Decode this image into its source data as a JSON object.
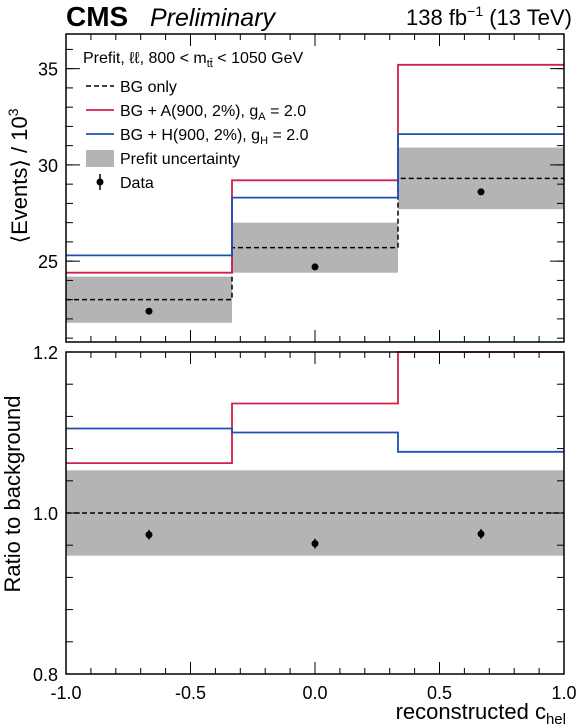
{
  "header": {
    "experiment": "CMS",
    "status": "Preliminary",
    "lumi": "138 fb",
    "lumi_exp": "−1",
    "energy": "(13 TeV)"
  },
  "annotation": {
    "prefix": "Prefit, ℓℓ, 800 < m",
    "sub": "tt̄",
    "suffix": " < 1050 GeV"
  },
  "legend": {
    "bg_only": "BG only",
    "bg_A_pre": "BG + A(900, 2%), g",
    "bg_A_sub": "A",
    "bg_A_post": " = 2.0",
    "bg_H_pre": "BG + H(900, 2%), g",
    "bg_H_sub": "H",
    "bg_H_post": " = 2.0",
    "uncertainty": "Prefit uncertainty",
    "data": "Data"
  },
  "colors": {
    "bg": "#000000",
    "signal_A": "#d1204a",
    "signal_H": "#1f4fb4",
    "uncertainty": "#b4b4b4",
    "data": "#000000"
  },
  "chart_data": [
    {
      "type": "line",
      "panel": "top",
      "ylabel_main": "⟨Events⟩ / 10",
      "ylabel_exp": "3",
      "ylim": [
        20.8,
        36.8
      ],
      "yticks": [
        25,
        30,
        35
      ],
      "bin_edges": [
        -1.0,
        -0.3333,
        0.3333,
        1.0
      ],
      "series": [
        {
          "key": "bg",
          "values": [
            23.0,
            25.7,
            29.3
          ]
        },
        {
          "key": "signal_A",
          "values": [
            24.4,
            29.2,
            35.2
          ]
        },
        {
          "key": "signal_H",
          "values": [
            25.3,
            28.3,
            31.6
          ]
        }
      ],
      "uncertainty_band": {
        "low": [
          21.8,
          24.4,
          27.7
        ],
        "high": [
          24.2,
          27.0,
          30.9
        ]
      },
      "data": {
        "x": [
          -0.6667,
          0.0,
          0.6667
        ],
        "y": [
          22.4,
          24.7,
          28.6
        ],
        "err": [
          0.1,
          0.1,
          0.1
        ]
      }
    },
    {
      "type": "line",
      "panel": "bottom",
      "ylabel": "Ratio to background",
      "xlabel_main": "reconstructed c",
      "xlabel_sub": "hel",
      "xlim": [
        -1.0,
        1.0
      ],
      "xticks": [
        -1.0,
        -0.5,
        0.0,
        0.5,
        1.0
      ],
      "xtick_labels": [
        "-1.0",
        "-0.5",
        "0.0",
        "0.5",
        "1.0"
      ],
      "ylim": [
        0.8,
        1.2
      ],
      "yticks": [
        0.8,
        1.0,
        1.2
      ],
      "ytick_labels": [
        "0.8",
        "1.0",
        "1.2"
      ],
      "bin_edges": [
        -1.0,
        -0.3333,
        0.3333,
        1.0
      ],
      "series": [
        {
          "key": "bg",
          "values": [
            1.0,
            1.0,
            1.0
          ]
        },
        {
          "key": "signal_A",
          "values": [
            1.062,
            1.136,
            1.2
          ]
        },
        {
          "key": "signal_H",
          "values": [
            1.105,
            1.1,
            1.076
          ]
        }
      ],
      "uncertainty_band": {
        "low": [
          0.947,
          0.947,
          0.947
        ],
        "high": [
          1.053,
          1.053,
          1.053
        ]
      },
      "data": {
        "x": [
          -0.6667,
          0.0,
          0.6667
        ],
        "y": [
          0.973,
          0.962,
          0.974
        ],
        "err": [
          0.006,
          0.006,
          0.006
        ]
      }
    }
  ]
}
